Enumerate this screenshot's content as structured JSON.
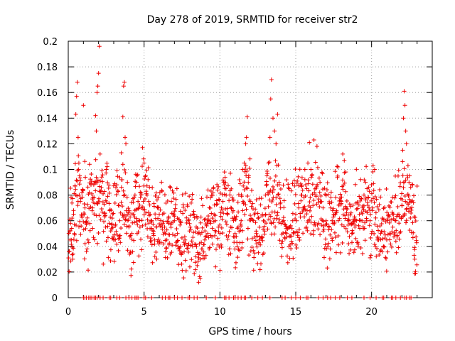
{
  "chart_data": {
    "type": "scatter",
    "title": "Day 278 of 2019, SRMTID for receiver str2",
    "xlabel": "GPS time / hours",
    "ylabel": "SRMTID / TECUs",
    "xlim": [
      0,
      24
    ],
    "ylim": [
      0,
      0.2
    ],
    "xticks": [
      0,
      5,
      10,
      15,
      20
    ],
    "xtick_labels": [
      "0",
      "5",
      "10",
      "15",
      "20"
    ],
    "yticks": [
      0,
      0.02,
      0.04,
      0.06,
      0.08,
      0.1,
      0.12,
      0.14,
      0.16,
      0.18,
      0.2
    ],
    "ytick_labels": [
      "0",
      "0.02",
      "0.04",
      "0.06",
      "0.08",
      "0.1",
      "0.12",
      "0.14",
      "0.16",
      "0.18",
      "0.2"
    ],
    "grid": true,
    "marker": "+",
    "color": "#ee0000",
    "series": [
      {
        "name": "SRMTID str2",
        "points": [
          [
            0.05,
            0.036
          ],
          [
            0.1,
            0.052
          ],
          [
            0.15,
            0.058
          ],
          [
            0.2,
            0.045
          ],
          [
            0.25,
            0.062
          ],
          [
            0.3,
            0.03
          ],
          [
            0.35,
            0.068
          ],
          [
            0.4,
            0.05
          ],
          [
            0.45,
            0.087
          ],
          [
            0.5,
            0.143
          ],
          [
            0.55,
            0.157
          ],
          [
            0.6,
            0.168
          ],
          [
            0.65,
            0.125
          ],
          [
            0.7,
            0.105
          ],
          [
            0.75,
            0.095
          ],
          [
            0.8,
            0.075
          ],
          [
            0.9,
            0.082
          ],
          [
            1.0,
            0.15
          ],
          [
            1.05,
            0.065
          ],
          [
            1.1,
            0.07
          ],
          [
            1.2,
            0.057
          ],
          [
            1.3,
            0.045
          ],
          [
            1.4,
            0.104
          ],
          [
            1.5,
            0.088
          ],
          [
            1.6,
            0.07
          ],
          [
            1.7,
            0.078
          ],
          [
            1.8,
            0.142
          ],
          [
            1.85,
            0.13
          ],
          [
            1.9,
            0.16
          ],
          [
            1.95,
            0.165
          ],
          [
            2.0,
            0.175
          ],
          [
            2.05,
            0.196
          ],
          [
            2.1,
            0.112
          ],
          [
            2.2,
            0.094
          ],
          [
            2.3,
            0.081
          ],
          [
            2.4,
            0.066
          ],
          [
            2.5,
            0.1
          ],
          [
            2.6,
            0.079
          ],
          [
            2.7,
            0.058
          ],
          [
            2.8,
            0.052
          ],
          [
            2.9,
            0.062
          ],
          [
            3.0,
            0.045
          ],
          [
            3.1,
            0.056
          ],
          [
            3.2,
            0.088
          ],
          [
            3.3,
            0.072
          ],
          [
            3.4,
            0.06
          ],
          [
            3.5,
            0.113
          ],
          [
            3.6,
            0.141
          ],
          [
            3.65,
            0.165
          ],
          [
            3.7,
            0.168
          ],
          [
            3.75,
            0.125
          ],
          [
            3.8,
            0.12
          ],
          [
            3.9,
            0.09
          ],
          [
            4.0,
            0.055
          ],
          [
            4.1,
            0.035
          ],
          [
            4.2,
            0.05
          ],
          [
            4.3,
            0.065
          ],
          [
            4.4,
            0.08
          ],
          [
            4.5,
            0.09
          ],
          [
            4.6,
            0.075
          ],
          [
            4.7,
            0.06
          ],
          [
            4.8,
            0.07
          ],
          [
            4.9,
            0.117
          ],
          [
            5.0,
            0.105
          ],
          [
            5.1,
            0.095
          ],
          [
            5.2,
            0.08
          ],
          [
            5.3,
            0.075
          ],
          [
            5.4,
            0.065
          ],
          [
            5.5,
            0.06
          ],
          [
            5.6,
            0.05
          ],
          [
            5.7,
            0.045
          ],
          [
            5.8,
            0.055
          ],
          [
            5.9,
            0.07
          ],
          [
            6.0,
            0.065
          ],
          [
            6.2,
            0.055
          ],
          [
            6.4,
            0.05
          ],
          [
            6.5,
            0.045
          ],
          [
            6.6,
            0.058
          ],
          [
            6.8,
            0.075
          ],
          [
            7.0,
            0.06
          ],
          [
            7.2,
            0.05
          ],
          [
            7.4,
            0.04
          ],
          [
            7.5,
            0.035
          ],
          [
            7.7,
            0.045
          ],
          [
            7.9,
            0.06
          ],
          [
            8.0,
            0.052
          ],
          [
            8.2,
            0.04
          ],
          [
            8.4,
            0.032
          ],
          [
            8.5,
            0.025
          ],
          [
            8.6,
            0.012
          ],
          [
            8.7,
            0.03
          ],
          [
            8.8,
            0.038
          ],
          [
            9.0,
            0.045
          ],
          [
            9.2,
            0.05
          ],
          [
            9.4,
            0.058
          ],
          [
            9.5,
            0.062
          ],
          [
            9.7,
            0.06
          ],
          [
            9.9,
            0.055
          ],
          [
            10.0,
            0.05
          ],
          [
            10.1,
            0.07
          ],
          [
            10.2,
            0.075
          ],
          [
            10.3,
            0.098
          ],
          [
            10.4,
            0.085
          ],
          [
            10.5,
            0.065
          ],
          [
            10.7,
            0.055
          ],
          [
            10.9,
            0.06
          ],
          [
            11.0,
            0.05
          ],
          [
            11.2,
            0.055
          ],
          [
            11.4,
            0.06
          ],
          [
            11.5,
            0.1
          ],
          [
            11.6,
            0.105
          ],
          [
            11.7,
            0.12
          ],
          [
            11.75,
            0.125
          ],
          [
            11.8,
            0.141
          ],
          [
            11.9,
            0.095
          ],
          [
            12.0,
            0.075
          ],
          [
            12.2,
            0.06
          ],
          [
            12.4,
            0.05
          ],
          [
            12.6,
            0.045
          ],
          [
            12.8,
            0.065
          ],
          [
            13.0,
            0.08
          ],
          [
            13.1,
            0.095
          ],
          [
            13.2,
            0.105
          ],
          [
            13.3,
            0.125
          ],
          [
            13.35,
            0.155
          ],
          [
            13.4,
            0.17
          ],
          [
            13.5,
            0.14
          ],
          [
            13.6,
            0.13
          ],
          [
            13.7,
            0.12
          ],
          [
            13.8,
            0.143
          ],
          [
            13.9,
            0.09
          ],
          [
            14.0,
            0.07
          ],
          [
            14.2,
            0.06
          ],
          [
            14.4,
            0.05
          ],
          [
            14.6,
            0.055
          ],
          [
            14.8,
            0.06
          ],
          [
            15.0,
            0.065
          ],
          [
            15.2,
            0.07
          ],
          [
            15.4,
            0.08
          ],
          [
            15.6,
            0.1
          ],
          [
            15.8,
            0.105
          ],
          [
            15.9,
            0.121
          ],
          [
            16.0,
            0.1
          ],
          [
            16.2,
            0.123
          ],
          [
            16.4,
            0.118
          ],
          [
            16.6,
            0.09
          ],
          [
            16.8,
            0.07
          ],
          [
            17.0,
            0.06
          ],
          [
            17.2,
            0.055
          ],
          [
            17.4,
            0.06
          ],
          [
            17.6,
            0.065
          ],
          [
            17.8,
            0.06
          ],
          [
            18.0,
            0.075
          ],
          [
            18.1,
            0.112
          ],
          [
            18.2,
            0.107
          ],
          [
            18.3,
            0.098
          ],
          [
            18.5,
            0.06
          ],
          [
            18.7,
            0.05
          ],
          [
            18.9,
            0.055
          ],
          [
            19.0,
            0.06
          ],
          [
            19.2,
            0.065
          ],
          [
            19.4,
            0.07
          ],
          [
            19.5,
            0.08
          ],
          [
            19.6,
            0.09
          ],
          [
            19.7,
            0.085
          ],
          [
            19.9,
            0.06
          ],
          [
            20.0,
            0.05
          ],
          [
            20.1,
            0.103
          ],
          [
            20.2,
            0.1
          ],
          [
            20.4,
            0.045
          ],
          [
            20.6,
            0.05
          ],
          [
            20.8,
            0.04
          ],
          [
            21.0,
            0.045
          ],
          [
            21.2,
            0.05
          ],
          [
            21.4,
            0.055
          ],
          [
            21.6,
            0.06
          ],
          [
            21.8,
            0.065
          ],
          [
            22.0,
            0.072
          ],
          [
            22.05,
            0.115
          ],
          [
            22.1,
            0.14
          ],
          [
            22.15,
            0.161
          ],
          [
            22.2,
            0.15
          ],
          [
            22.25,
            0.13
          ],
          [
            22.3,
            0.12
          ],
          [
            22.4,
            0.103
          ],
          [
            22.5,
            0.095
          ],
          [
            22.6,
            0.075
          ],
          [
            22.7,
            0.088
          ],
          [
            22.8,
            0.063
          ],
          [
            22.85,
            0.03
          ],
          [
            22.9,
            0.019
          ],
          [
            23.0,
            0.087
          ]
        ]
      }
    ],
    "zero_marks_x": [
      1.0,
      1.1,
      1.2,
      1.35,
      1.45,
      1.55,
      1.7,
      1.8,
      1.9,
      2.1,
      2.3,
      2.7,
      2.8,
      3.2,
      3.4,
      3.8,
      4.0,
      4.2,
      4.4,
      4.5,
      4.6,
      5.0,
      5.1,
      5.5,
      6.2,
      6.4,
      6.6,
      6.7,
      7.0,
      7.2,
      7.5,
      7.9,
      8.0,
      8.3,
      8.5,
      9.1,
      9.7,
      10.3,
      10.4,
      10.6,
      10.9,
      11.0,
      11.2,
      11.4,
      11.6,
      11.7,
      12.1,
      12.5,
      12.8,
      13.3,
      14.1,
      14.3,
      14.7,
      15.0,
      15.3,
      15.7,
      15.8,
      16.5,
      16.8,
      17.1,
      17.3,
      17.6,
      17.9,
      18.4,
      18.7,
      19.5,
      19.9,
      20.3,
      20.7,
      20.8,
      21.3,
      21.4,
      21.6,
      21.9,
      22.2,
      22.3,
      22.5,
      22.6
    ],
    "colors": {
      "marker": "#ee0000",
      "grid": "#a0a0a0",
      "axis": "#000000"
    }
  }
}
